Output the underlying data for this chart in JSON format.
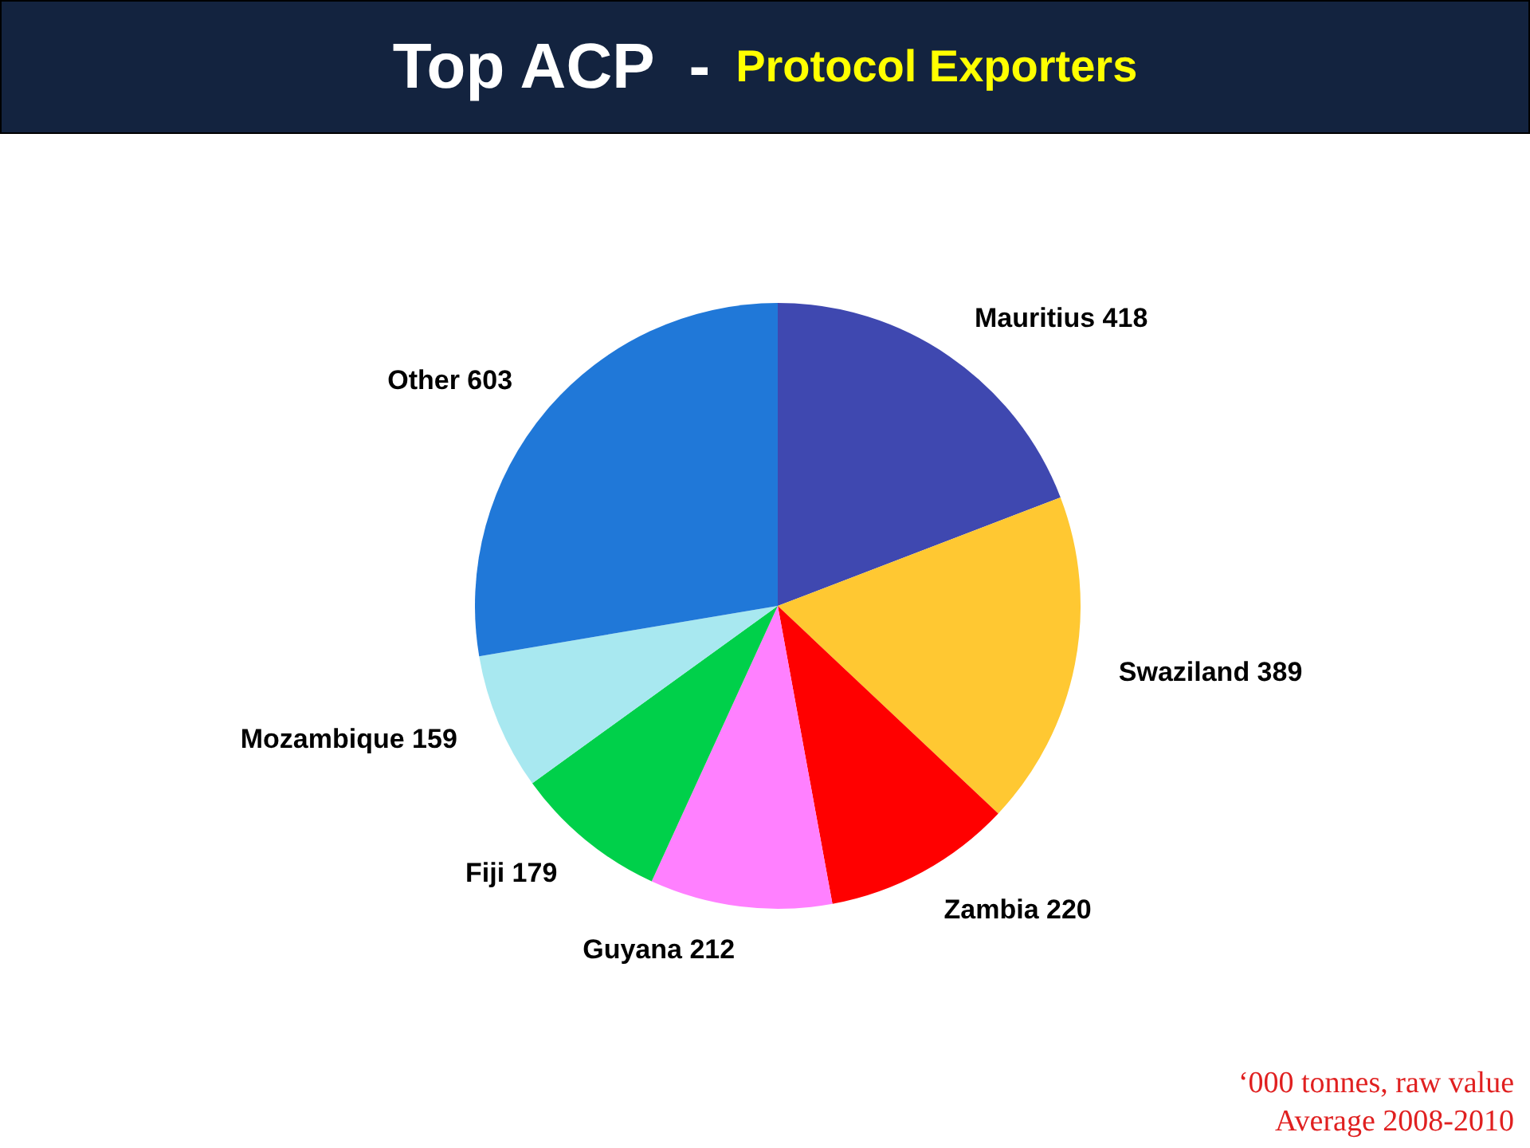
{
  "chart_data": {
    "type": "pie",
    "title": "Top ACP  -",
    "subtitle": "Protocol Exporters",
    "categories": [
      "Mauritius",
      "Swaziland",
      "Zambia",
      "Guyana",
      "Fiji",
      "Mozambique",
      "Other"
    ],
    "values": [
      418,
      389,
      220,
      212,
      179,
      159,
      603
    ],
    "colors": [
      "#3f48b0",
      "#ffc832",
      "#ff0000",
      "#ff80ff",
      "#00d04a",
      "#a8e8f0",
      "#2078d8"
    ],
    "data_labels": true,
    "legend": false,
    "annotations": [
      "‘000 tonnes, raw value",
      "Average 2008-2010"
    ]
  }
}
